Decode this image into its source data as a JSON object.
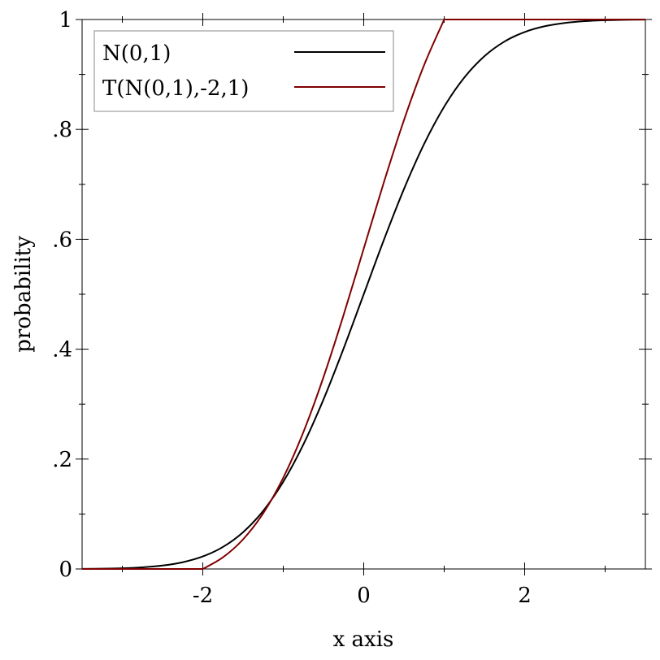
{
  "chart_data": {
    "type": "line",
    "title": "",
    "xlabel": "x axis",
    "ylabel": "probability",
    "xlim": [
      -3.5,
      3.5
    ],
    "ylim": [
      0,
      1
    ],
    "x_ticks": [
      -2,
      0,
      2
    ],
    "x_tick_labels": [
      "-2",
      "0",
      "2"
    ],
    "x_minor_ticks": [
      -3,
      -1,
      1,
      3
    ],
    "y_ticks": [
      0,
      0.2,
      0.4,
      0.6,
      0.8,
      1
    ],
    "y_tick_labels": [
      "0",
      ".2",
      ".4",
      ".6",
      ".8",
      "1"
    ],
    "y_minor_ticks": [
      0.1,
      0.3,
      0.5,
      0.7,
      0.9
    ],
    "grid": false,
    "legend_placement": "top-left",
    "series": [
      {
        "name": "N(0,1)",
        "color": "#000000",
        "x": [
          -3.5,
          -3.25,
          -3,
          -2.75,
          -2.5,
          -2.25,
          -2,
          -1.75,
          -1.5,
          -1.25,
          -1,
          -0.75,
          -0.5,
          -0.25,
          0,
          0.25,
          0.5,
          0.75,
          1,
          1.25,
          1.5,
          1.75,
          2,
          2.25,
          2.5,
          2.75,
          3,
          3.25,
          3.5
        ],
        "y": [
          0.00023,
          0.00058,
          0.00135,
          0.00298,
          0.00621,
          0.01222,
          0.02275,
          0.04006,
          0.06681,
          0.10565,
          0.15866,
          0.22663,
          0.30854,
          0.40129,
          0.5,
          0.59871,
          0.69146,
          0.77337,
          0.84134,
          0.89435,
          0.93319,
          0.95994,
          0.97725,
          0.98778,
          0.99379,
          0.99702,
          0.99865,
          0.99942,
          0.99977
        ]
      },
      {
        "name": "T(N(0,1),-2,1)",
        "color": "#800000",
        "x": [
          -3.5,
          -2,
          -1.75,
          -1.5,
          -1.25,
          -1,
          -0.75,
          -0.5,
          -0.25,
          0,
          0.25,
          0.5,
          0.75,
          1,
          3.5
        ],
        "y": [
          0,
          0,
          0.02115,
          0.05382,
          0.10127,
          0.16603,
          0.24906,
          0.34913,
          0.46243,
          0.58302,
          0.7036,
          0.8169,
          0.91697,
          1,
          1
        ]
      }
    ]
  }
}
